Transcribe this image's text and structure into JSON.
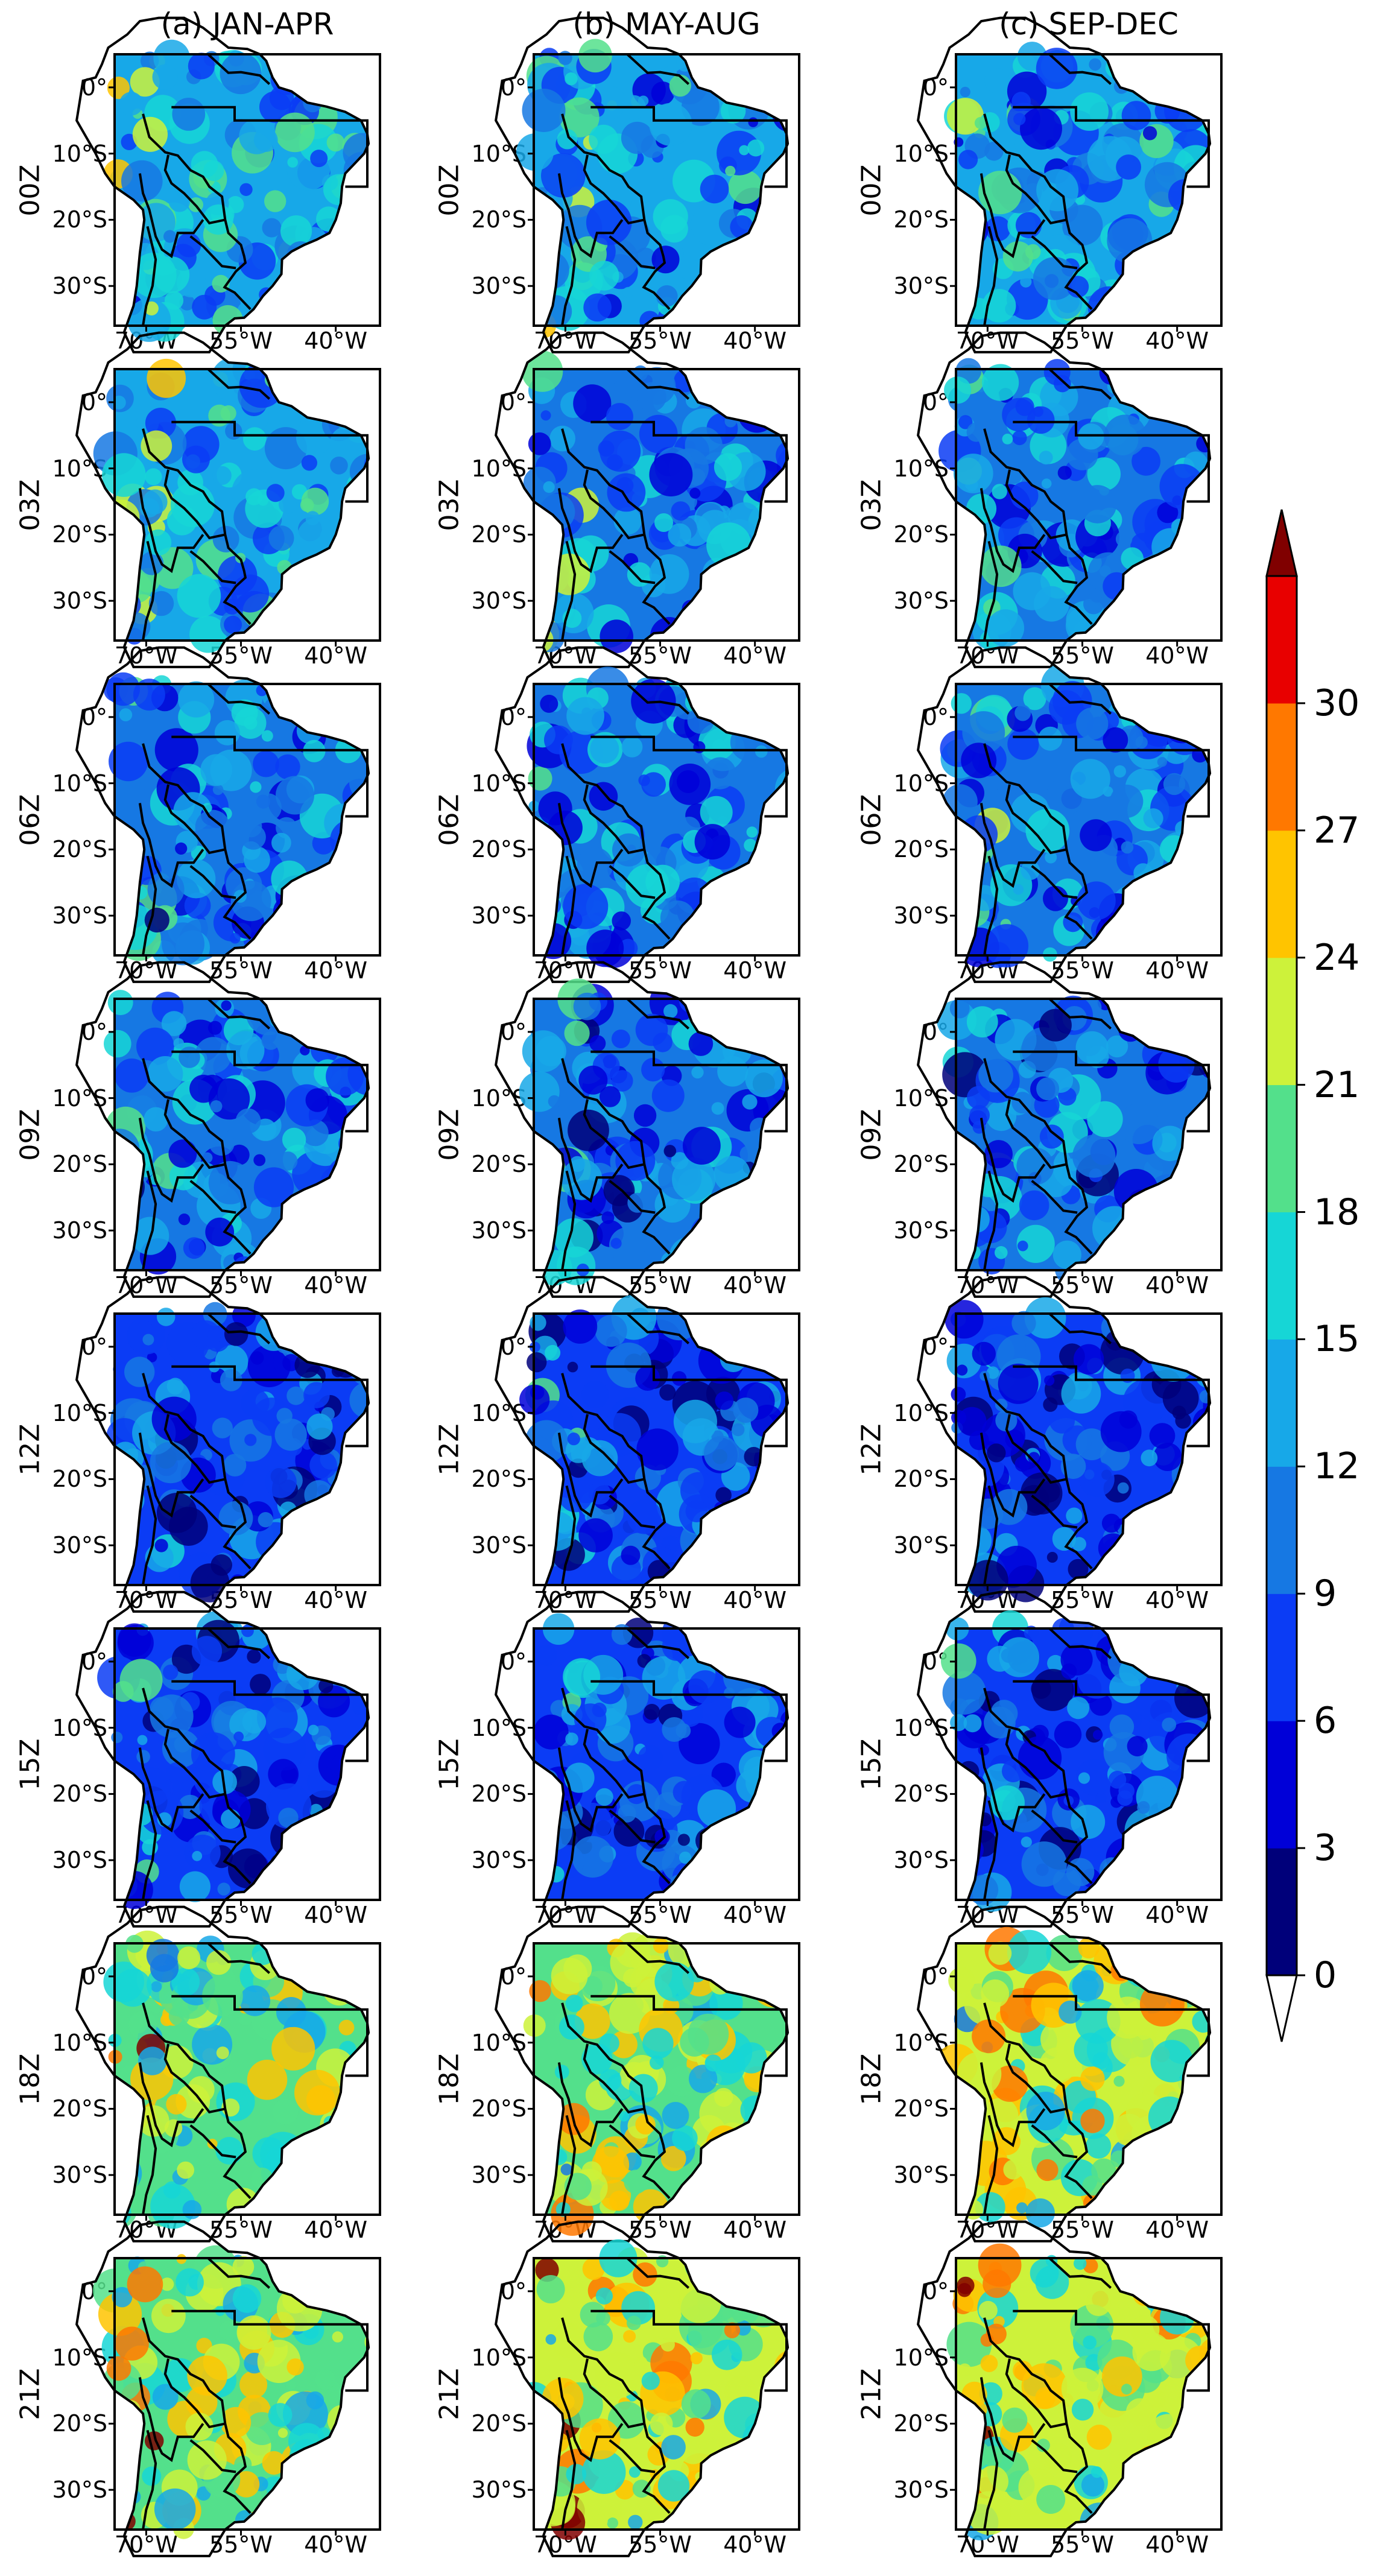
{
  "chart_data": {
    "type": "heatmap",
    "column_titles": [
      "(a) JAN-APR",
      "(b) MAY-AUG",
      "(c) SEP-DEC"
    ],
    "row_labels": [
      "00Z",
      "03Z",
      "06Z",
      "09Z",
      "12Z",
      "15Z",
      "18Z",
      "21Z"
    ],
    "lat_ticks": [
      "0°",
      "10°S",
      "20°S",
      "30°S"
    ],
    "lon_ticks": [
      "70°W",
      "55°W",
      "40°W"
    ],
    "xlim_deg": [
      -75,
      -33
    ],
    "ylim_deg": [
      -36,
      5
    ],
    "colorbar": {
      "levels": [
        0,
        3,
        6,
        9,
        12,
        15,
        18,
        21,
        24,
        27,
        30
      ],
      "tick_labels": [
        "0",
        "3",
        "6",
        "9",
        "12",
        "15",
        "18",
        "21",
        "24",
        "27",
        "30"
      ],
      "colors": [
        "#00007a",
        "#0000d8",
        "#0b3cf5",
        "#1678e3",
        "#17a8e8",
        "#16d6d6",
        "#53e08b",
        "#cdf23a",
        "#ffc400",
        "#ff7800",
        "#e80000"
      ],
      "extend": "both",
      "over_color": "#800000",
      "under_color": "#ffffff"
    },
    "panel_mean_values": [
      [
        13,
        12,
        12
      ],
      [
        13,
        11,
        11
      ],
      [
        11,
        10,
        10
      ],
      [
        10,
        9,
        9
      ],
      [
        8,
        7,
        7
      ],
      [
        8,
        8,
        8
      ],
      [
        19,
        20,
        21
      ],
      [
        20,
        21,
        21
      ]
    ]
  }
}
